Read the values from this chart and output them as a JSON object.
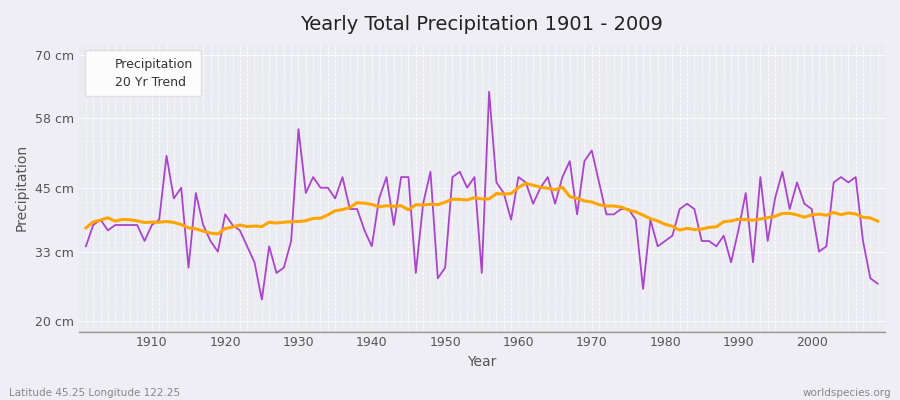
{
  "title": "Yearly Total Precipitation 1901 - 2009",
  "xlabel": "Year",
  "ylabel": "Precipitation",
  "bottom_left": "Latitude 45.25 Longitude 122.25",
  "bottom_right": "worldspecies.org",
  "legend_labels": [
    "Precipitation",
    "20 Yr Trend"
  ],
  "precip_color": "#AA44CC",
  "trend_color": "#FFA500",
  "bg_color": "#EEEEF4",
  "plot_bg_color": "#EBEBF2",
  "years": [
    1901,
    1902,
    1903,
    1904,
    1905,
    1906,
    1907,
    1908,
    1909,
    1910,
    1911,
    1912,
    1913,
    1914,
    1915,
    1916,
    1917,
    1918,
    1919,
    1920,
    1921,
    1922,
    1923,
    1924,
    1925,
    1926,
    1927,
    1928,
    1929,
    1930,
    1931,
    1932,
    1933,
    1934,
    1935,
    1936,
    1937,
    1938,
    1939,
    1940,
    1941,
    1942,
    1943,
    1944,
    1945,
    1946,
    1947,
    1948,
    1949,
    1950,
    1951,
    1952,
    1953,
    1954,
    1955,
    1956,
    1957,
    1958,
    1959,
    1960,
    1961,
    1962,
    1963,
    1964,
    1965,
    1966,
    1967,
    1968,
    1969,
    1970,
    1971,
    1972,
    1973,
    1974,
    1975,
    1976,
    1977,
    1978,
    1979,
    1980,
    1981,
    1982,
    1983,
    1984,
    1985,
    1986,
    1987,
    1988,
    1989,
    1990,
    1991,
    1992,
    1993,
    1994,
    1995,
    1996,
    1997,
    1998,
    1999,
    2000,
    2001,
    2002,
    2003,
    2004,
    2005,
    2006,
    2007,
    2008,
    2009
  ],
  "precip": [
    34,
    38,
    39,
    37,
    38,
    38,
    38,
    38,
    35,
    38,
    39,
    51,
    43,
    45,
    30,
    44,
    38,
    35,
    33,
    40,
    38,
    37,
    34,
    31,
    24,
    34,
    29,
    30,
    35,
    56,
    44,
    47,
    45,
    45,
    43,
    47,
    41,
    41,
    37,
    34,
    43,
    47,
    38,
    47,
    47,
    29,
    42,
    48,
    28,
    30,
    47,
    48,
    45,
    47,
    29,
    63,
    46,
    44,
    39,
    47,
    46,
    42,
    45,
    47,
    42,
    47,
    50,
    40,
    50,
    52,
    46,
    40,
    40,
    41,
    41,
    39,
    26,
    39,
    34,
    35,
    36,
    41,
    42,
    41,
    35,
    35,
    34,
    36,
    31,
    37,
    44,
    31,
    47,
    35,
    43,
    48,
    41,
    46,
    42,
    41,
    33,
    34,
    46,
    47,
    46,
    47,
    35,
    28,
    27
  ],
  "yticks": [
    20,
    33,
    45,
    58,
    70
  ],
  "ylim": [
    18,
    72
  ],
  "xlim": [
    1900,
    2010
  ]
}
